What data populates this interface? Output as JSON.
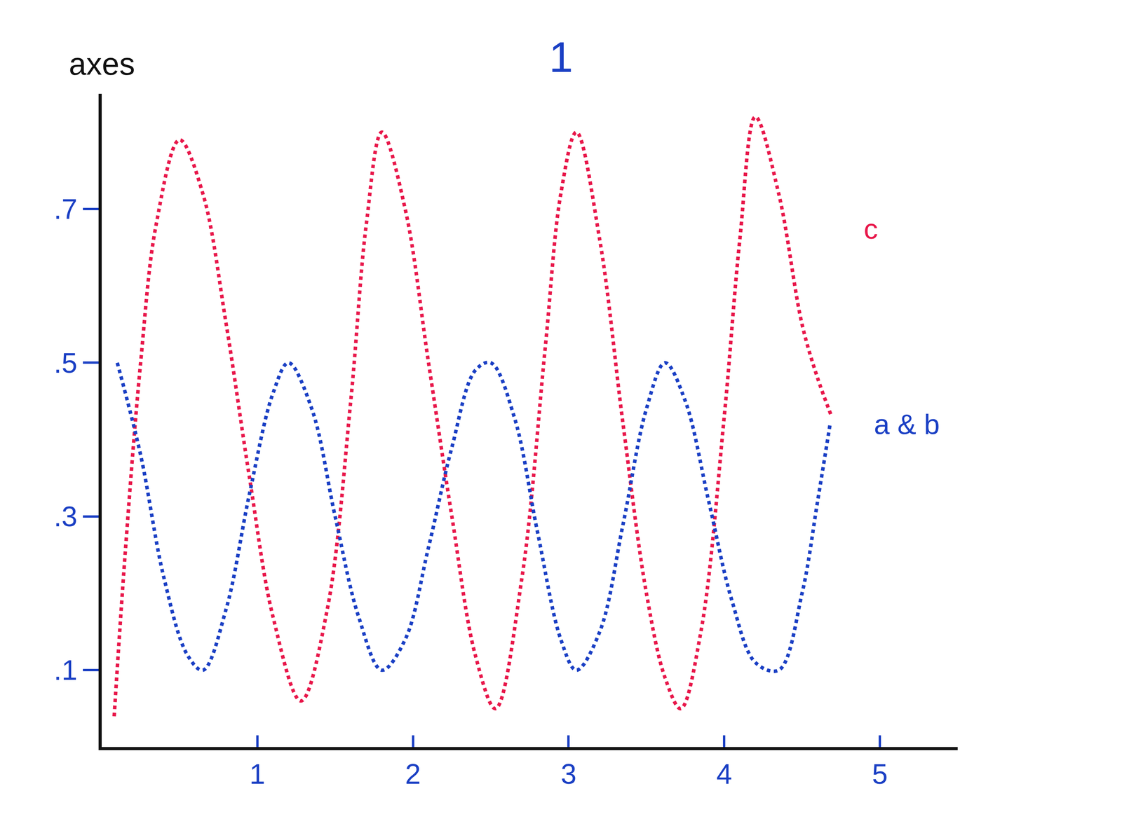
{
  "chart_data": {
    "type": "line",
    "title": "1",
    "y_label": "axes",
    "xlim": [
      0,
      5.5
    ],
    "xticks": [
      1,
      2,
      3,
      4,
      5
    ],
    "ylim": [
      0,
      0.85
    ],
    "yticks": [
      {
        "value": 0.1,
        "label": ".1"
      },
      {
        "value": 0.3,
        "label": ".3"
      },
      {
        "value": 0.5,
        "label": ".5"
      },
      {
        "value": 0.7,
        "label": ".7"
      }
    ],
    "grid": false,
    "line_style": "dot",
    "series": [
      {
        "name": "c",
        "color": "#e8174a",
        "x": [
          0.08,
          0.15,
          0.25,
          0.35,
          0.5,
          0.65,
          0.8,
          0.95,
          1.1,
          1.28,
          1.45,
          1.6,
          1.7,
          1.8,
          1.95,
          2.1,
          2.25,
          2.4,
          2.53,
          2.7,
          2.85,
          2.95,
          3.05,
          3.2,
          3.35,
          3.5,
          3.62,
          3.72,
          3.85,
          4.0,
          4.1,
          4.2,
          4.35,
          4.5,
          4.6,
          4.69
        ],
        "values": [
          0.04,
          0.25,
          0.5,
          0.68,
          0.79,
          0.72,
          0.55,
          0.35,
          0.17,
          0.06,
          0.18,
          0.45,
          0.68,
          0.8,
          0.7,
          0.5,
          0.3,
          0.12,
          0.05,
          0.22,
          0.52,
          0.72,
          0.8,
          0.66,
          0.42,
          0.2,
          0.09,
          0.05,
          0.15,
          0.43,
          0.66,
          0.82,
          0.72,
          0.55,
          0.48,
          0.43
        ]
      },
      {
        "name": "a & b",
        "color": "#1a3fc4",
        "x": [
          0.1,
          0.25,
          0.4,
          0.55,
          0.65,
          0.8,
          0.95,
          1.1,
          1.2,
          1.35,
          1.5,
          1.65,
          1.8,
          1.95,
          2.1,
          2.25,
          2.4,
          2.5,
          2.65,
          2.8,
          2.95,
          3.05,
          3.2,
          3.35,
          3.5,
          3.62,
          3.75,
          3.9,
          4.05,
          4.2,
          4.35,
          4.5,
          4.6,
          4.68
        ],
        "values": [
          0.5,
          0.38,
          0.22,
          0.12,
          0.1,
          0.18,
          0.33,
          0.46,
          0.5,
          0.44,
          0.3,
          0.17,
          0.1,
          0.14,
          0.26,
          0.39,
          0.49,
          0.5,
          0.43,
          0.28,
          0.14,
          0.1,
          0.15,
          0.29,
          0.44,
          0.5,
          0.45,
          0.32,
          0.19,
          0.11,
          0.1,
          0.2,
          0.32,
          0.42
        ]
      }
    ]
  }
}
